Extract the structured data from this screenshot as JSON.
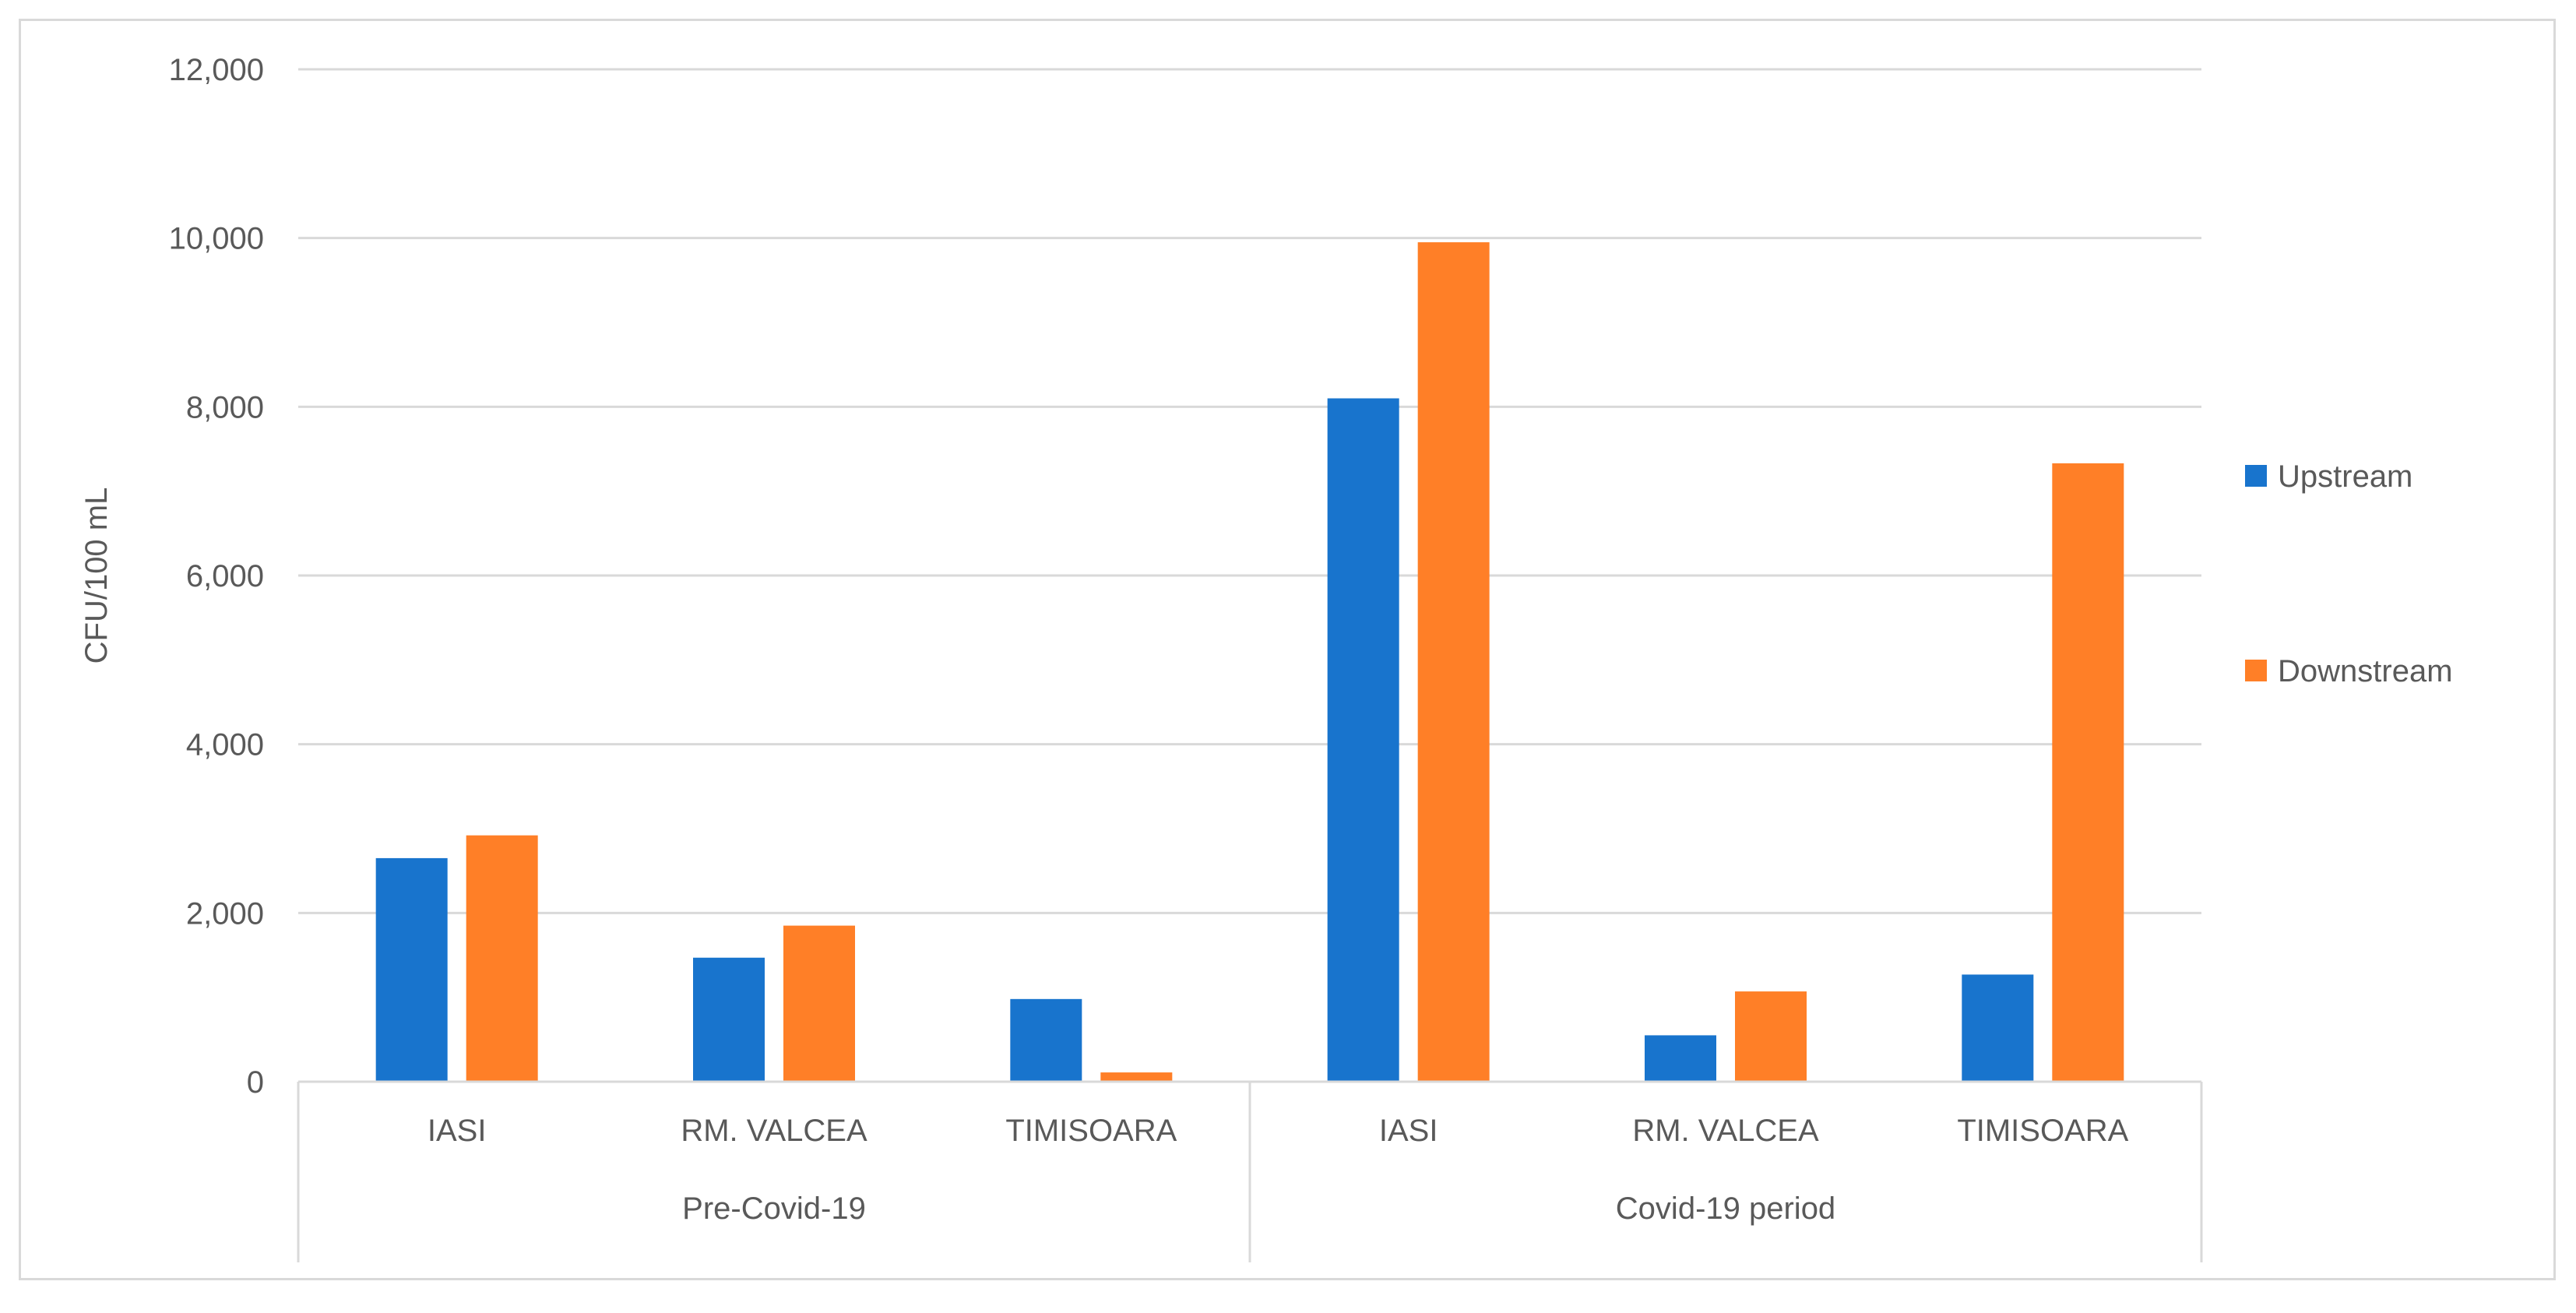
{
  "chart_data": {
    "type": "bar",
    "title": "",
    "xlabel": "",
    "ylabel": "CFU/100 mL",
    "ylim": [
      0,
      12000
    ],
    "yticks": [
      0,
      2000,
      4000,
      6000,
      8000,
      10000,
      12000
    ],
    "ytick_labels": [
      "0",
      "2,000",
      "4,000",
      "6,000",
      "8,000",
      "10,000",
      "12,000"
    ],
    "grid": "horizontal",
    "legend_position": "right",
    "groups": [
      {
        "label": "Pre-Covid-19",
        "categories": [
          "IASI",
          "RM. VALCEA",
          "TIMISOARA"
        ]
      },
      {
        "label": "Covid-19 period",
        "categories": [
          "IASI",
          "RM. VALCEA",
          "TIMISOARA"
        ]
      }
    ],
    "categories": [
      "IASI",
      "RM. VALCEA",
      "TIMISOARA",
      "IASI",
      "RM. VALCEA",
      "TIMISOARA"
    ],
    "series": [
      {
        "name": "Upstream",
        "color": "#1874cd",
        "values": [
          2650,
          1470,
          980,
          8100,
          550,
          1270
        ]
      },
      {
        "name": "Downstream",
        "color": "#ff7f27",
        "values": [
          2920,
          1850,
          110,
          9950,
          1070,
          7330
        ]
      }
    ]
  }
}
